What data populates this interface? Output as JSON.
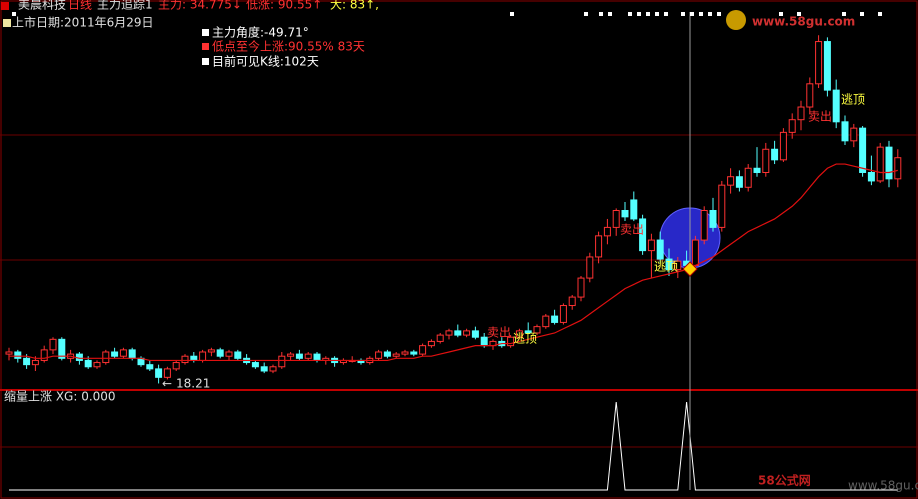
{
  "header": {
    "stock": "美晨科技",
    "period": "日线",
    "indicator": "主力追踪1",
    "main": "主力: 34.775↓",
    "low_rise": "低涨: 90.55↑",
    "days": "大: 83↑,"
  },
  "listing_date": "上市日期:2011年6月29日",
  "info": [
    "主力角度:-49.71°",
    "低点至今上涨:90.55%  83天",
    "目前可见K线:102天"
  ],
  "logo": "www.58gu.com",
  "watermark": "58公式网",
  "watermark_url": "www.58gu.com",
  "chart_data": [
    {
      "type": "candlestick",
      "ylim": [
        17.9,
        35.8
      ],
      "up_color": "#ff3232",
      "down_color": "#54ffff",
      "ma_color": "#e01010",
      "annotations": [
        "卖出",
        "逃顶",
        "卖出",
        "逃顶",
        "卖出",
        "逃顶"
      ],
      "candles": [
        [
          19.6,
          19.9,
          19.3,
          19.7
        ],
        [
          19.7,
          19.8,
          19.2,
          19.4
        ],
        [
          19.4,
          19.6,
          18.9,
          19.1
        ],
        [
          19.1,
          19.5,
          18.8,
          19.3
        ],
        [
          19.3,
          20.0,
          19.2,
          19.8
        ],
        [
          19.8,
          20.4,
          19.6,
          20.3
        ],
        [
          20.3,
          20.4,
          19.3,
          19.4
        ],
        [
          19.4,
          19.8,
          19.2,
          19.6
        ],
        [
          19.6,
          19.7,
          19.1,
          19.3
        ],
        [
          19.3,
          19.5,
          18.9,
          19.0
        ],
        [
          19.0,
          19.3,
          18.9,
          19.2
        ],
        [
          19.2,
          19.8,
          19.1,
          19.7
        ],
        [
          19.7,
          19.9,
          19.4,
          19.5
        ],
        [
          19.5,
          19.9,
          19.4,
          19.8
        ],
        [
          19.8,
          19.9,
          19.3,
          19.4
        ],
        [
          19.4,
          19.5,
          19.0,
          19.1
        ],
        [
          19.1,
          19.3,
          18.8,
          18.9
        ],
        [
          18.9,
          19.1,
          18.21,
          18.5
        ],
        [
          18.5,
          19.0,
          18.4,
          18.9
        ],
        [
          18.9,
          19.3,
          18.8,
          19.2
        ],
        [
          19.2,
          19.6,
          19.1,
          19.5
        ],
        [
          19.5,
          19.7,
          19.2,
          19.3
        ],
        [
          19.3,
          19.8,
          19.2,
          19.7
        ],
        [
          19.7,
          19.9,
          19.5,
          19.8
        ],
        [
          19.8,
          19.9,
          19.4,
          19.5
        ],
        [
          19.5,
          19.8,
          19.3,
          19.7
        ],
        [
          19.7,
          19.8,
          19.3,
          19.4
        ],
        [
          19.4,
          19.6,
          19.1,
          19.2
        ],
        [
          19.2,
          19.3,
          18.9,
          19.0
        ],
        [
          19.0,
          19.2,
          18.7,
          18.8
        ],
        [
          18.8,
          19.1,
          18.7,
          19.0
        ],
        [
          19.0,
          19.7,
          18.9,
          19.5
        ],
        [
          19.5,
          19.7,
          19.3,
          19.6
        ],
        [
          19.6,
          19.8,
          19.3,
          19.4
        ],
        [
          19.4,
          19.7,
          19.3,
          19.6
        ],
        [
          19.6,
          19.7,
          19.2,
          19.3
        ],
        [
          19.3,
          19.5,
          19.1,
          19.4
        ],
        [
          19.4,
          19.5,
          19.0,
          19.2
        ],
        [
          19.2,
          19.4,
          19.1,
          19.3
        ],
        [
          19.3,
          19.5,
          19.2,
          19.3
        ],
        [
          19.3,
          19.4,
          19.1,
          19.2
        ],
        [
          19.2,
          19.5,
          19.1,
          19.4
        ],
        [
          19.4,
          19.8,
          19.3,
          19.7
        ],
        [
          19.7,
          19.8,
          19.4,
          19.5
        ],
        [
          19.5,
          19.7,
          19.4,
          19.6
        ],
        [
          19.6,
          19.8,
          19.5,
          19.7
        ],
        [
          19.7,
          19.8,
          19.5,
          19.6
        ],
        [
          19.6,
          20.1,
          19.5,
          20.0
        ],
        [
          20.0,
          20.3,
          19.9,
          20.2
        ],
        [
          20.2,
          20.6,
          20.1,
          20.5
        ],
        [
          20.5,
          20.8,
          20.3,
          20.7
        ],
        [
          20.7,
          21.0,
          20.4,
          20.5
        ],
        [
          20.5,
          20.8,
          20.4,
          20.7
        ],
        [
          20.7,
          20.9,
          20.3,
          20.4
        ],
        [
          20.4,
          20.6,
          19.9,
          20.0
        ],
        [
          20.0,
          20.3,
          19.8,
          20.2
        ],
        [
          20.2,
          20.4,
          19.9,
          20.0
        ],
        [
          20.0,
          20.5,
          19.9,
          20.4
        ],
        [
          20.4,
          20.8,
          20.3,
          20.7
        ],
        [
          20.7,
          21.1,
          20.6,
          20.6
        ],
        [
          20.6,
          21.0,
          20.5,
          20.9
        ],
        [
          20.9,
          21.5,
          20.8,
          21.4
        ],
        [
          21.4,
          21.7,
          21.0,
          21.1
        ],
        [
          21.1,
          22.0,
          21.0,
          21.9
        ],
        [
          21.9,
          22.4,
          21.7,
          22.3
        ],
        [
          22.3,
          23.3,
          22.1,
          23.2
        ],
        [
          23.2,
          24.4,
          23.0,
          24.2
        ],
        [
          24.2,
          25.4,
          23.9,
          25.2
        ],
        [
          25.2,
          26.0,
          24.8,
          25.6
        ],
        [
          25.6,
          26.5,
          25.2,
          26.4
        ],
        [
          26.4,
          26.8,
          25.9,
          26.1
        ],
        [
          26.9,
          27.3,
          25.9,
          26.0
        ],
        [
          26.0,
          26.2,
          24.3,
          24.5
        ],
        [
          24.5,
          25.3,
          23.2,
          25.0
        ],
        [
          25.0,
          25.4,
          23.9,
          24.1
        ],
        [
          24.1,
          24.6,
          23.3,
          23.6
        ],
        [
          23.6,
          24.2,
          23.2,
          24.0
        ],
        [
          24.0,
          24.5,
          23.5,
          23.8
        ],
        [
          23.8,
          25.2,
          23.6,
          25.0
        ],
        [
          25.0,
          26.6,
          24.8,
          26.4
        ],
        [
          26.4,
          27.0,
          25.4,
          25.6
        ],
        [
          25.6,
          27.8,
          25.4,
          27.6
        ],
        [
          27.6,
          28.4,
          27.2,
          28.0
        ],
        [
          28.0,
          28.3,
          27.3,
          27.5
        ],
        [
          27.5,
          28.6,
          27.3,
          28.4
        ],
        [
          28.4,
          29.4,
          28.0,
          28.2
        ],
        [
          28.2,
          29.6,
          28.0,
          29.3
        ],
        [
          29.3,
          29.7,
          28.6,
          28.8
        ],
        [
          28.8,
          30.3,
          28.7,
          30.1
        ],
        [
          30.1,
          31.0,
          29.8,
          30.7
        ],
        [
          30.7,
          31.6,
          30.2,
          31.3
        ],
        [
          31.3,
          32.7,
          31.0,
          32.4
        ],
        [
          32.4,
          34.7,
          32.2,
          34.4
        ],
        [
          34.4,
          34.6,
          31.8,
          32.1
        ],
        [
          32.1,
          32.6,
          30.3,
          30.6
        ],
        [
          30.6,
          30.9,
          29.5,
          29.7
        ],
        [
          29.7,
          30.5,
          29.4,
          30.3
        ],
        [
          30.3,
          30.4,
          28.0,
          28.2
        ],
        [
          28.2,
          29.0,
          27.6,
          27.8
        ],
        [
          27.8,
          29.6,
          27.7,
          29.4
        ],
        [
          29.4,
          29.7,
          27.5,
          27.9
        ],
        [
          27.9,
          29.3,
          27.5,
          28.9
        ]
      ],
      "ma": [
        19.5,
        19.5,
        19.5,
        19.4,
        19.4,
        19.5,
        19.5,
        19.5,
        19.4,
        19.4,
        19.4,
        19.4,
        19.4,
        19.4,
        19.4,
        19.4,
        19.3,
        19.3,
        19.3,
        19.3,
        19.3,
        19.3,
        19.3,
        19.3,
        19.3,
        19.3,
        19.3,
        19.3,
        19.3,
        19.3,
        19.3,
        19.3,
        19.3,
        19.3,
        19.3,
        19.3,
        19.3,
        19.3,
        19.3,
        19.3,
        19.3,
        19.3,
        19.3,
        19.3,
        19.4,
        19.4,
        19.4,
        19.5,
        19.5,
        19.6,
        19.7,
        19.8,
        19.9,
        20.0,
        20.0,
        20.0,
        20.1,
        20.1,
        20.2,
        20.3,
        20.4,
        20.5,
        20.6,
        20.8,
        21.0,
        21.2,
        21.5,
        21.8,
        22.1,
        22.4,
        22.7,
        22.9,
        23.1,
        23.2,
        23.3,
        23.4,
        23.5,
        23.6,
        23.8,
        24.0,
        24.2,
        24.5,
        24.8,
        25.1,
        25.4,
        25.6,
        25.8,
        26.0,
        26.3,
        26.6,
        27.0,
        27.5,
        28.0,
        28.4,
        28.6,
        28.6,
        28.5,
        28.4,
        28.3,
        28.2,
        28.2,
        28.3
      ]
    },
    {
      "type": "line",
      "title": "缩量上涨 XG: 0.000",
      "ylim": [
        0,
        1
      ],
      "color": "#ffffff",
      "values": [
        0,
        0,
        0,
        0,
        0,
        0,
        0,
        0,
        0,
        0,
        0,
        0,
        0,
        0,
        0,
        0,
        0,
        0,
        0,
        0,
        0,
        0,
        0,
        0,
        0,
        0,
        0,
        0,
        0,
        0,
        0,
        0,
        0,
        0,
        0,
        0,
        0,
        0,
        0,
        0,
        0,
        0,
        0,
        0,
        0,
        0,
        0,
        0,
        0,
        0,
        0,
        0,
        0,
        0,
        0,
        0,
        0,
        0,
        0,
        0,
        0,
        0,
        0,
        0,
        0,
        0,
        0,
        0,
        0,
        1,
        0,
        0,
        0,
        0,
        0,
        0,
        0,
        1,
        0,
        0,
        0,
        0,
        0,
        0,
        0,
        0,
        0,
        0,
        0,
        0,
        0,
        0,
        0,
        0,
        0,
        0,
        0,
        0,
        0,
        0,
        0,
        0
      ]
    }
  ]
}
